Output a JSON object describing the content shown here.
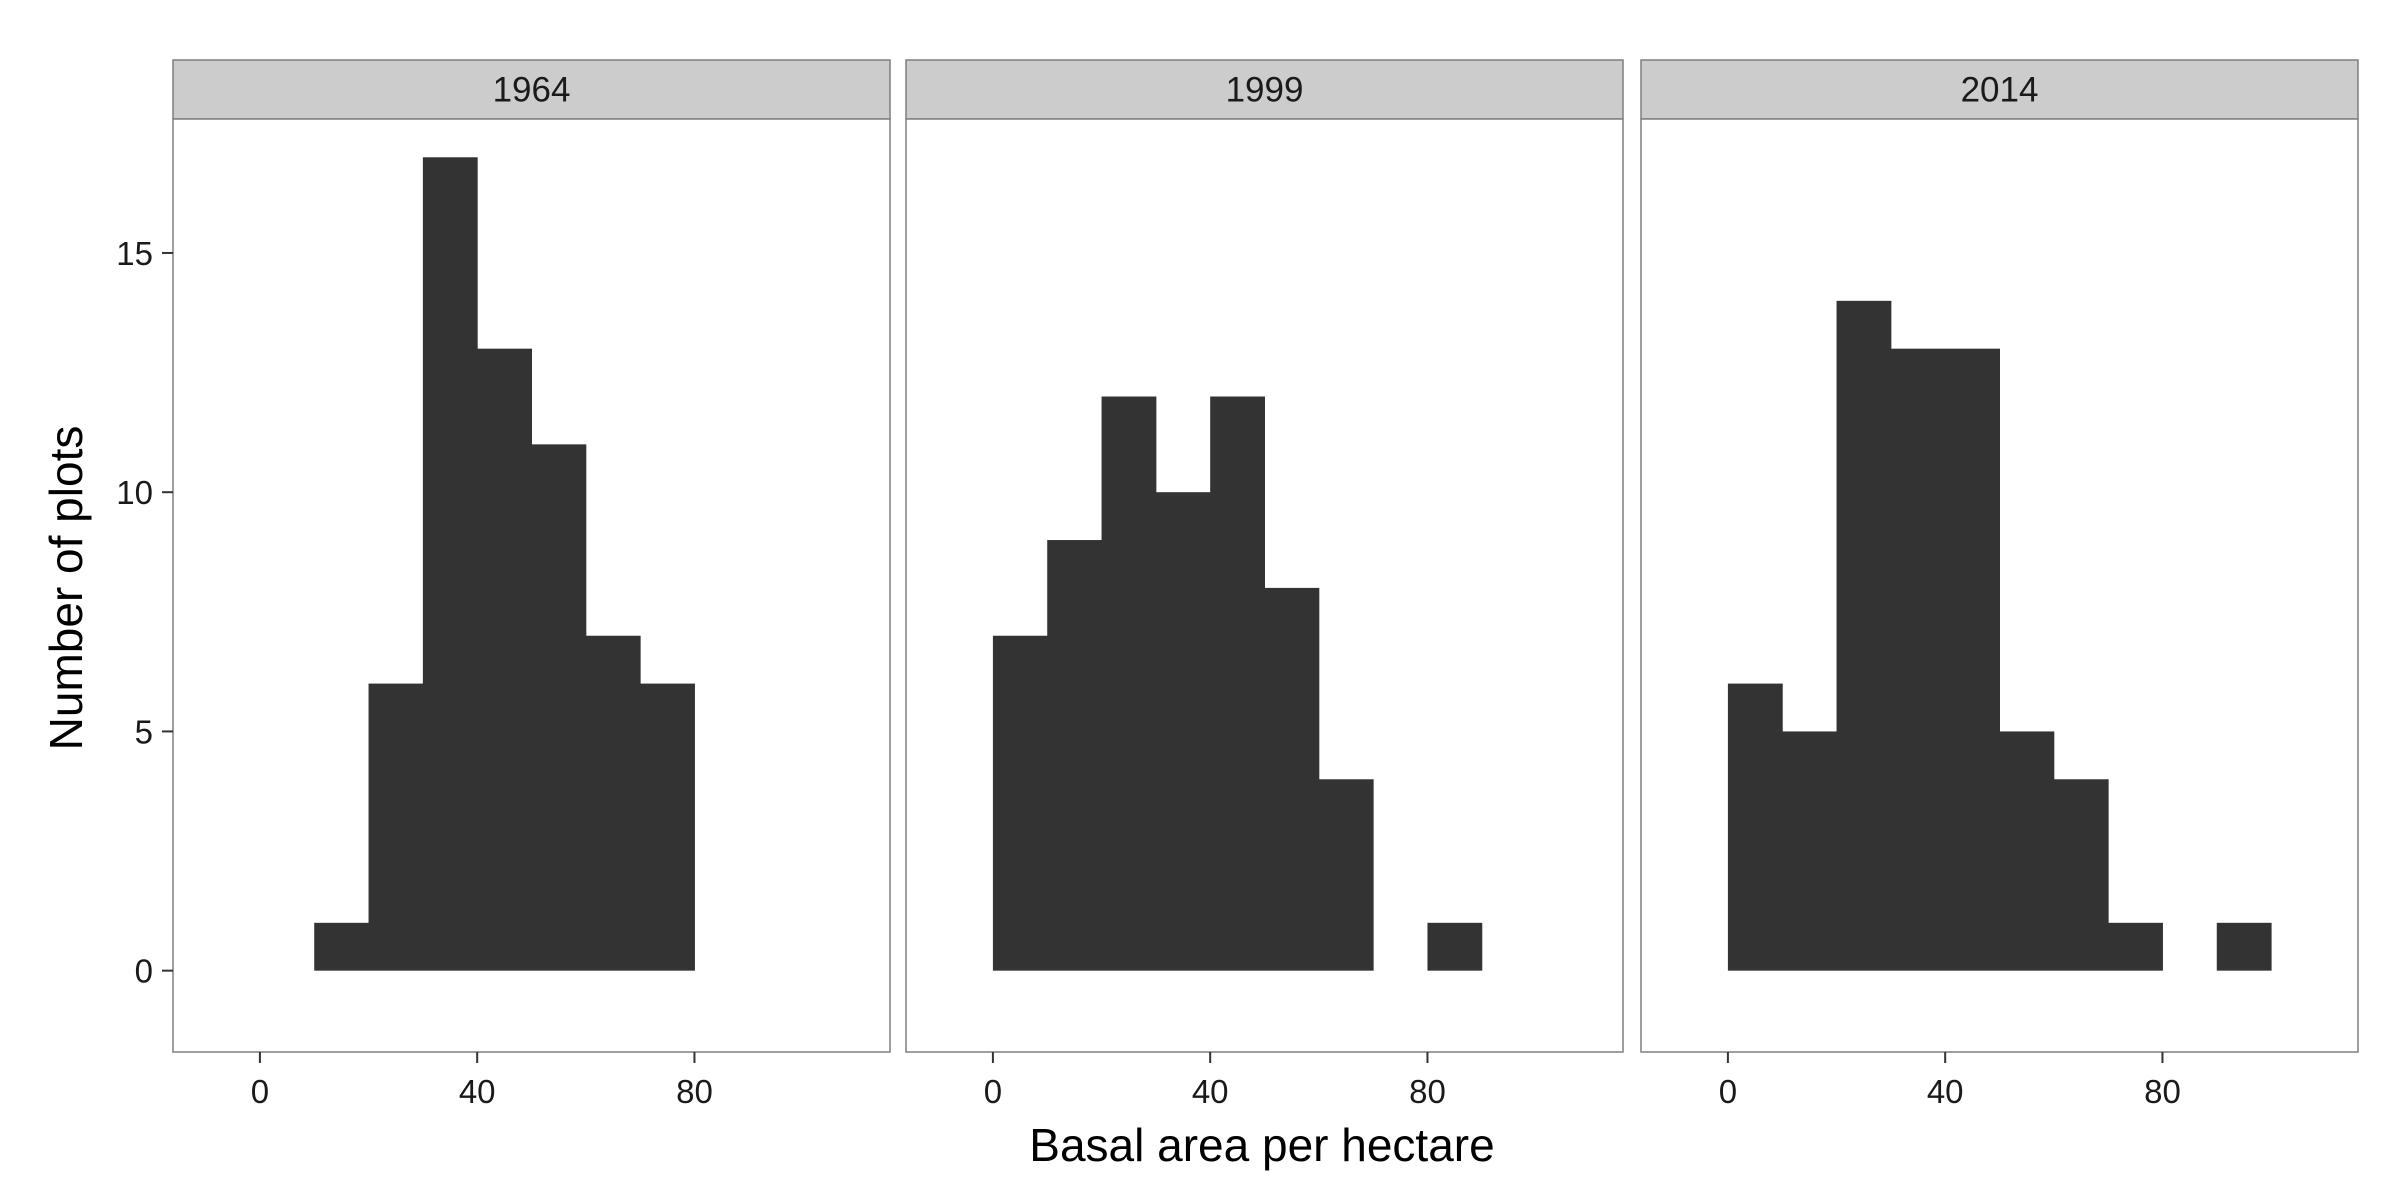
{
  "chart_data": {
    "type": "bar",
    "chart_kind": "faceted histogram",
    "xlabel": "Basal area per hectare",
    "ylabel": "Number of plots",
    "xlim": [
      -16,
      116
    ],
    "ylim": [
      -1.7,
      17.8
    ],
    "x_ticks": [
      0,
      40,
      80
    ],
    "y_ticks": [
      0,
      5,
      10,
      15
    ],
    "bin_width": 10,
    "grid": false,
    "bar_color": "#333333",
    "strip_color": "#cccccc",
    "panel_border_color": "#7f7f7f",
    "facets": [
      {
        "label": "1964",
        "bins": [
          {
            "x": 10,
            "count": 1
          },
          {
            "x": 20,
            "count": 6
          },
          {
            "x": 30,
            "count": 17
          },
          {
            "x": 40,
            "count": 13
          },
          {
            "x": 50,
            "count": 11
          },
          {
            "x": 60,
            "count": 7
          },
          {
            "x": 70,
            "count": 6
          }
        ]
      },
      {
        "label": "1999",
        "bins": [
          {
            "x": 0,
            "count": 7
          },
          {
            "x": 10,
            "count": 9
          },
          {
            "x": 20,
            "count": 12
          },
          {
            "x": 30,
            "count": 10
          },
          {
            "x": 40,
            "count": 12
          },
          {
            "x": 50,
            "count": 8
          },
          {
            "x": 60,
            "count": 4
          },
          {
            "x": 80,
            "count": 1
          }
        ]
      },
      {
        "label": "2014",
        "bins": [
          {
            "x": 0,
            "count": 6
          },
          {
            "x": 10,
            "count": 5
          },
          {
            "x": 20,
            "count": 14
          },
          {
            "x": 30,
            "count": 13
          },
          {
            "x": 40,
            "count": 13
          },
          {
            "x": 50,
            "count": 5
          },
          {
            "x": 60,
            "count": 4
          },
          {
            "x": 70,
            "count": 1
          },
          {
            "x": 90,
            "count": 1
          }
        ]
      }
    ]
  }
}
